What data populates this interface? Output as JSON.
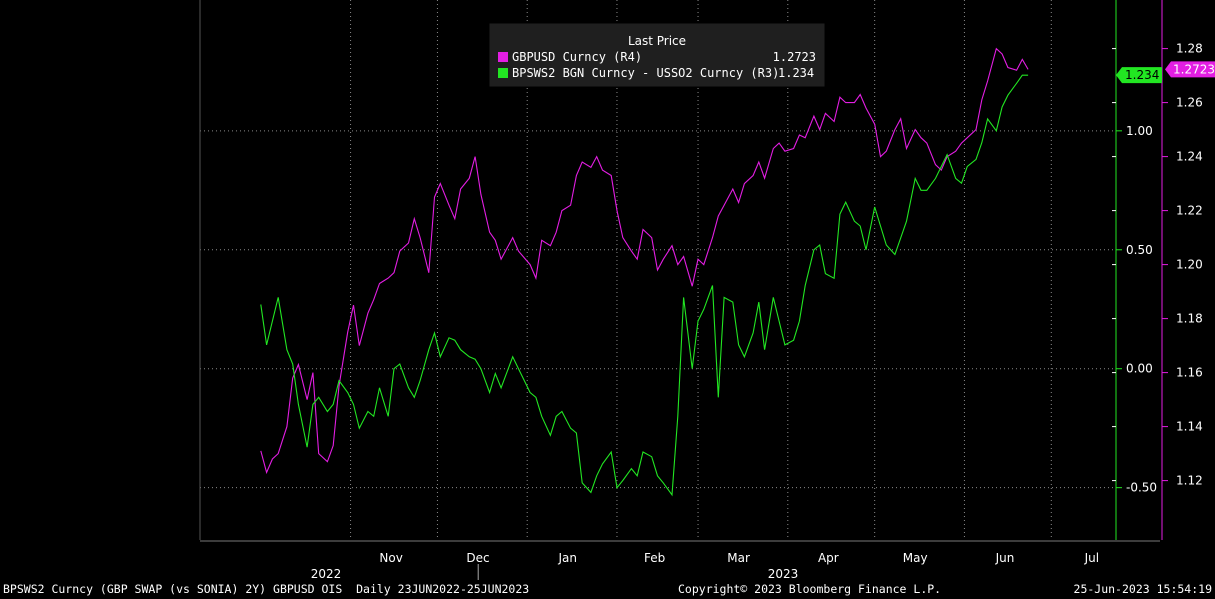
{
  "chart_data": {
    "type": "line",
    "legend": {
      "title": "Last Price",
      "entries": [
        {
          "name": "GBPUSD Curncy  (R4)",
          "last": "1.2723",
          "color": "#e31ee3"
        },
        {
          "name": "BPSWS2 BGN Curncy - USSO2 Curncy  (R3)",
          "last": "1.234",
          "color": "#22e622"
        }
      ],
      "placement": "top-center"
    },
    "x_axis": {
      "months": [
        "Nov",
        "Dec",
        "Jan",
        "Feb",
        "Mar",
        "Apr",
        "May",
        "Jun",
        "Jul"
      ],
      "years": [
        "2022",
        "2023"
      ],
      "range": [
        "2022-06-23",
        "2023-06-25"
      ]
    },
    "left_axis": {
      "name": "BPSWS2 BGN Curncy - USSO2 Curncy (R3)",
      "ticks": [
        "1.00",
        "0.50",
        "0.00",
        "-0.50"
      ],
      "ylim": [
        -0.72,
        1.55
      ],
      "last_label": "1.234",
      "color": "#22e622"
    },
    "right_axis": {
      "name": "GBPUSD Curncy (R4)",
      "ticks": [
        "1.28",
        "1.26",
        "1.24",
        "1.22",
        "1.20",
        "1.18",
        "1.16",
        "1.14",
        "1.12"
      ],
      "ylim": [
        1.098,
        1.298
      ],
      "last_label": "1.2723",
      "color": "#e31ee3"
    },
    "grid": true,
    "series": [
      {
        "name": "GBPUSD Curncy  (R4)",
        "color": "#e31ee3",
        "x": [
          "2022-10-01",
          "2022-10-03",
          "2022-10-05",
          "2022-10-07",
          "2022-10-10",
          "2022-10-12",
          "2022-10-14",
          "2022-10-17",
          "2022-10-19",
          "2022-10-21",
          "2022-10-24",
          "2022-10-26",
          "2022-10-28",
          "2022-10-31",
          "2022-11-02",
          "2022-11-04",
          "2022-11-07",
          "2022-11-09",
          "2022-11-11",
          "2022-11-14",
          "2022-11-16",
          "2022-11-18",
          "2022-11-21",
          "2022-11-23",
          "2022-11-25",
          "2022-11-28",
          "2022-11-30",
          "2022-12-02",
          "2022-12-05",
          "2022-12-07",
          "2022-12-09",
          "2022-12-12",
          "2022-12-14",
          "2022-12-16",
          "2022-12-19",
          "2022-12-21",
          "2022-12-23",
          "2022-12-27",
          "2022-12-29",
          "2023-01-02",
          "2023-01-04",
          "2023-01-06",
          "2023-01-09",
          "2023-01-11",
          "2023-01-13",
          "2023-01-16",
          "2023-01-18",
          "2023-01-20",
          "2023-01-23",
          "2023-01-25",
          "2023-01-27",
          "2023-01-30",
          "2023-02-01",
          "2023-02-03",
          "2023-02-06",
          "2023-02-08",
          "2023-02-10",
          "2023-02-13",
          "2023-02-15",
          "2023-02-17",
          "2023-02-20",
          "2023-02-22",
          "2023-02-24",
          "2023-02-27",
          "2023-03-01",
          "2023-03-03",
          "2023-03-06",
          "2023-03-08",
          "2023-03-10",
          "2023-03-13",
          "2023-03-15",
          "2023-03-17",
          "2023-03-20",
          "2023-03-22",
          "2023-03-24",
          "2023-03-27",
          "2023-03-29",
          "2023-03-31",
          "2023-04-03",
          "2023-04-05",
          "2023-04-07",
          "2023-04-10",
          "2023-04-12",
          "2023-04-14",
          "2023-04-17",
          "2023-04-19",
          "2023-04-21",
          "2023-04-24",
          "2023-04-26",
          "2023-04-28",
          "2023-05-01",
          "2023-05-03",
          "2023-05-05",
          "2023-05-08",
          "2023-05-10",
          "2023-05-12",
          "2023-05-15",
          "2023-05-17",
          "2023-05-19",
          "2023-05-22",
          "2023-05-24",
          "2023-05-26",
          "2023-05-29",
          "2023-05-31",
          "2023-06-02",
          "2023-06-05",
          "2023-06-07",
          "2023-06-09",
          "2023-06-12",
          "2023-06-14",
          "2023-06-16",
          "2023-06-19",
          "2023-06-21",
          "2023-06-23"
        ],
        "values": [
          1.131,
          1.123,
          1.128,
          1.13,
          1.14,
          1.158,
          1.163,
          1.15,
          1.16,
          1.13,
          1.127,
          1.133,
          1.155,
          1.175,
          1.185,
          1.17,
          1.182,
          1.187,
          1.193,
          1.195,
          1.197,
          1.205,
          1.208,
          1.217,
          1.21,
          1.197,
          1.225,
          1.23,
          1.222,
          1.217,
          1.228,
          1.232,
          1.24,
          1.226,
          1.212,
          1.209,
          1.202,
          1.21,
          1.205,
          1.2,
          1.195,
          1.209,
          1.207,
          1.212,
          1.22,
          1.222,
          1.233,
          1.238,
          1.236,
          1.24,
          1.235,
          1.233,
          1.22,
          1.21,
          1.205,
          1.202,
          1.213,
          1.21,
          1.198,
          1.202,
          1.207,
          1.2,
          1.203,
          1.192,
          1.202,
          1.2,
          1.21,
          1.218,
          1.222,
          1.228,
          1.223,
          1.23,
          1.233,
          1.238,
          1.232,
          1.243,
          1.245,
          1.242,
          1.243,
          1.248,
          1.247,
          1.255,
          1.25,
          1.256,
          1.253,
          1.262,
          1.26,
          1.26,
          1.263,
          1.258,
          1.252,
          1.24,
          1.242,
          1.25,
          1.254,
          1.243,
          1.25,
          1.247,
          1.245,
          1.237,
          1.235,
          1.24,
          1.242,
          1.245,
          1.247,
          1.25,
          1.261,
          1.268,
          1.28,
          1.278,
          1.273,
          1.272,
          1.276,
          1.2723
        ]
      },
      {
        "name": "BPSWS2 BGN Curncy - USSO2 Curncy  (R3)",
        "color": "#22e622",
        "x": [
          "2022-10-01",
          "2022-10-03",
          "2022-10-05",
          "2022-10-07",
          "2022-10-10",
          "2022-10-12",
          "2022-10-14",
          "2022-10-17",
          "2022-10-19",
          "2022-10-21",
          "2022-10-24",
          "2022-10-26",
          "2022-10-28",
          "2022-10-31",
          "2022-11-02",
          "2022-11-04",
          "2022-11-07",
          "2022-11-09",
          "2022-11-11",
          "2022-11-14",
          "2022-11-16",
          "2022-11-18",
          "2022-11-21",
          "2022-11-23",
          "2022-11-25",
          "2022-11-28",
          "2022-11-30",
          "2022-12-02",
          "2022-12-05",
          "2022-12-07",
          "2022-12-09",
          "2022-12-12",
          "2022-12-14",
          "2022-12-16",
          "2022-12-19",
          "2022-12-21",
          "2022-12-23",
          "2022-12-27",
          "2022-12-29",
          "2023-01-02",
          "2023-01-04",
          "2023-01-06",
          "2023-01-09",
          "2023-01-11",
          "2023-01-13",
          "2023-01-16",
          "2023-01-18",
          "2023-01-20",
          "2023-01-23",
          "2023-01-25",
          "2023-01-27",
          "2023-01-30",
          "2023-02-01",
          "2023-02-03",
          "2023-02-06",
          "2023-02-08",
          "2023-02-10",
          "2023-02-13",
          "2023-02-15",
          "2023-02-17",
          "2023-02-20",
          "2023-02-22",
          "2023-02-24",
          "2023-02-27",
          "2023-03-01",
          "2023-03-03",
          "2023-03-06",
          "2023-03-08",
          "2023-03-10",
          "2023-03-13",
          "2023-03-15",
          "2023-03-17",
          "2023-03-20",
          "2023-03-22",
          "2023-03-24",
          "2023-03-27",
          "2023-03-29",
          "2023-03-31",
          "2023-04-03",
          "2023-04-05",
          "2023-04-07",
          "2023-04-10",
          "2023-04-12",
          "2023-04-14",
          "2023-04-17",
          "2023-04-19",
          "2023-04-21",
          "2023-04-24",
          "2023-04-26",
          "2023-04-28",
          "2023-05-01",
          "2023-05-03",
          "2023-05-05",
          "2023-05-08",
          "2023-05-10",
          "2023-05-12",
          "2023-05-15",
          "2023-05-17",
          "2023-05-19",
          "2023-05-22",
          "2023-05-24",
          "2023-05-26",
          "2023-05-29",
          "2023-05-31",
          "2023-06-02",
          "2023-06-05",
          "2023-06-07",
          "2023-06-09",
          "2023-06-12",
          "2023-06-14",
          "2023-06-16",
          "2023-06-19",
          "2023-06-21",
          "2023-06-23"
        ],
        "values": [
          0.27,
          0.1,
          0.2,
          0.3,
          0.08,
          0.02,
          -0.15,
          -0.33,
          -0.15,
          -0.12,
          -0.18,
          -0.15,
          -0.05,
          -0.1,
          -0.15,
          -0.25,
          -0.18,
          -0.2,
          -0.08,
          -0.2,
          0.0,
          0.02,
          -0.08,
          -0.12,
          -0.05,
          0.08,
          0.15,
          0.05,
          0.13,
          0.12,
          0.08,
          0.05,
          0.04,
          0.0,
          -0.1,
          -0.02,
          -0.08,
          0.05,
          0.0,
          -0.1,
          -0.12,
          -0.2,
          -0.28,
          -0.2,
          -0.18,
          -0.25,
          -0.27,
          -0.48,
          -0.52,
          -0.45,
          -0.4,
          -0.35,
          -0.5,
          -0.47,
          -0.42,
          -0.45,
          -0.35,
          -0.37,
          -0.45,
          -0.48,
          -0.53,
          -0.2,
          0.3,
          0.0,
          0.2,
          0.25,
          0.35,
          -0.12,
          0.3,
          0.28,
          0.1,
          0.05,
          0.15,
          0.28,
          0.08,
          0.3,
          0.2,
          0.1,
          0.12,
          0.2,
          0.35,
          0.5,
          0.52,
          0.4,
          0.38,
          0.65,
          0.7,
          0.62,
          0.6,
          0.5,
          0.68,
          0.6,
          0.52,
          0.48,
          0.55,
          0.62,
          0.8,
          0.75,
          0.75,
          0.8,
          0.85,
          0.9,
          0.8,
          0.78,
          0.85,
          0.88,
          0.95,
          1.05,
          1.0,
          1.1,
          1.15,
          1.2,
          1.234,
          1.234
        ]
      }
    ]
  },
  "footer": {
    "left": "BPSWS2 Curncy (GBP SWAP (vs SONIA) 2Y) GBPUSD OIS  Daily 23JUN2022-25JUN2023",
    "center": "Copyright© 2023 Bloomberg Finance L.P.",
    "right": "25-Jun-2023 15:54:19"
  }
}
